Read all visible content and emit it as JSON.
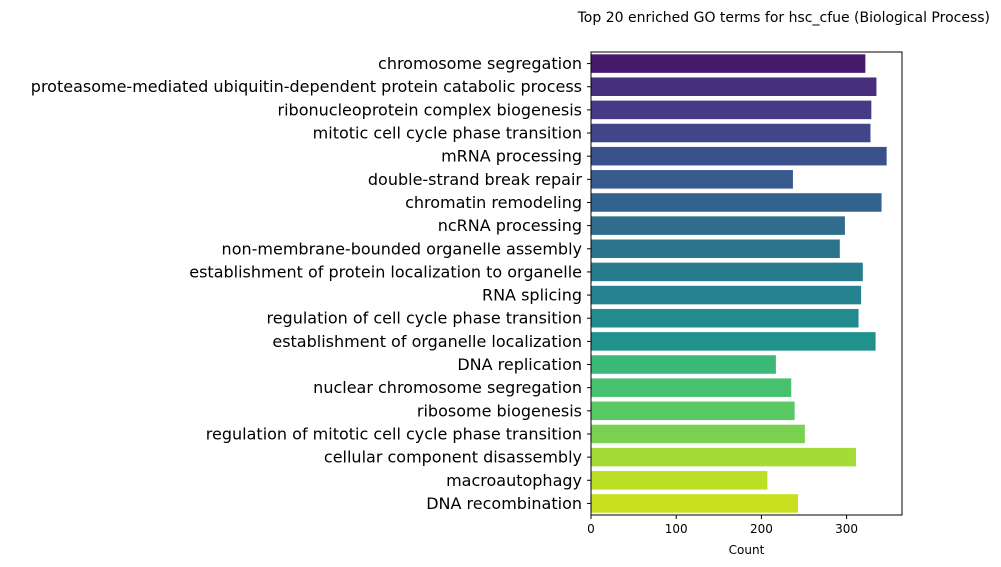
{
  "chart_data": {
    "type": "bar",
    "orientation": "horizontal",
    "title": "Top 20 enriched GO terms for hsc_cfue (Biological Process)",
    "xlabel": "Count",
    "ylabel": "",
    "xlim": [
      0,
      365
    ],
    "xticks": [
      0,
      100,
      200,
      300
    ],
    "grid": false,
    "categories": [
      "chromosome segregation",
      "proteasome-mediated ubiquitin-dependent protein catabolic process",
      "ribonucleoprotein complex biogenesis",
      "mitotic cell cycle phase transition",
      "mRNA processing",
      "double-strand break repair",
      "chromatin remodeling",
      "ncRNA processing",
      "non-membrane-bounded organelle assembly",
      "establishment of protein localization to organelle",
      "RNA splicing",
      "regulation of cell cycle phase transition",
      "establishment of organelle localization",
      "DNA replication",
      "nuclear chromosome segregation",
      "ribosome biogenesis",
      "regulation of mitotic cell cycle phase transition",
      "cellular component disassembly",
      "macroautophagy",
      "DNA recombination"
    ],
    "values": [
      322,
      335,
      329,
      328,
      347,
      237,
      341,
      298,
      292,
      319,
      317,
      314,
      334,
      217,
      235,
      239,
      251,
      311,
      207,
      243
    ],
    "colors": [
      "#481a6c",
      "#472f7d",
      "#443b84",
      "#404688",
      "#3b518b",
      "#375b8d",
      "#33638d",
      "#2f6c8e",
      "#2c738e",
      "#297b8e",
      "#26828e",
      "#228b8d",
      "#21918c",
      "#3aba76",
      "#48c16e",
      "#5ac864",
      "#7ad151",
      "#a5db36",
      "#bddf26",
      "#c8e020"
    ]
  }
}
